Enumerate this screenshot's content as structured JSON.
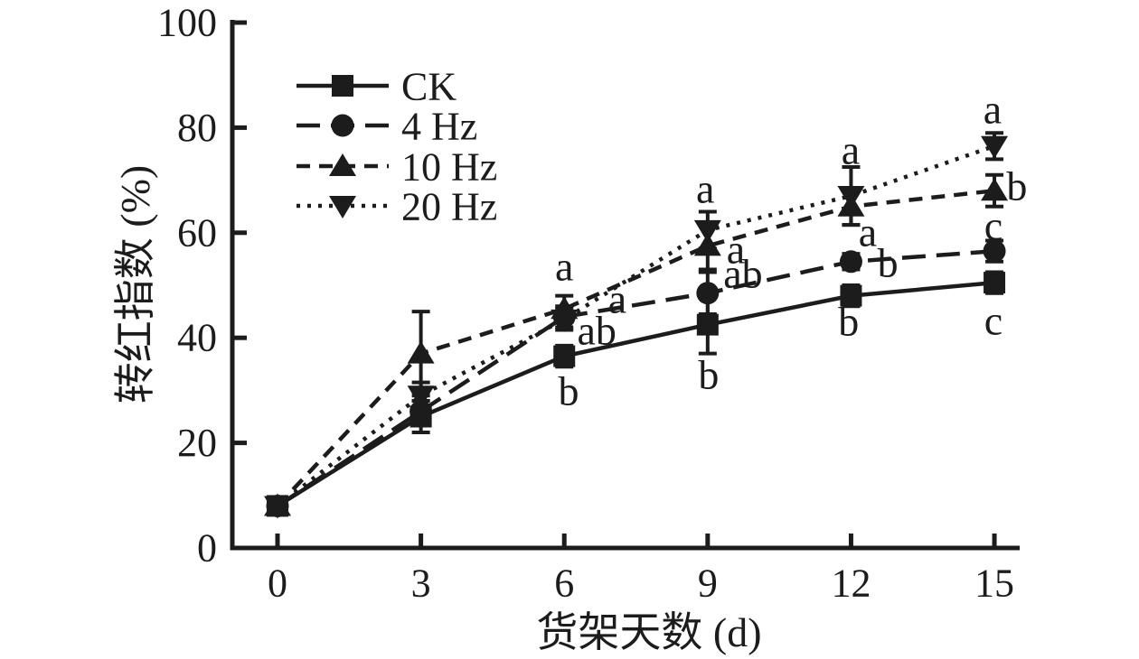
{
  "figure": {
    "background": "#ffffff",
    "ink_color": "#1c1c1c"
  },
  "chart_data": {
    "type": "line",
    "title": "",
    "xlabel": "货架天数 (d)",
    "ylabel": "转红指数 (%)",
    "x": [
      0,
      3,
      6,
      9,
      12,
      15
    ],
    "xtick_labels": [
      "0",
      "3",
      "6",
      "9",
      "12",
      "15"
    ],
    "ytick_values": [
      0,
      20,
      40,
      60,
      80,
      100
    ],
    "xlim": [
      -1,
      15.6
    ],
    "ylim": [
      0,
      100
    ],
    "grid": false,
    "error_bars": true,
    "legend_position": "top-left-inside",
    "series": [
      {
        "name": "CK",
        "marker": "square",
        "line_style": "solid",
        "values": [
          8,
          25,
          36.5,
          42.5,
          48,
          50.5
        ],
        "errors": [
          1.5,
          3,
          2,
          5.5,
          2,
          2
        ]
      },
      {
        "name": "4 Hz",
        "marker": "circle",
        "line_style": "long-dash",
        "values": [
          8,
          26,
          44,
          48.5,
          54.5,
          56.5
        ],
        "errors": [
          1.5,
          2,
          2,
          4,
          1.5,
          2
        ]
      },
      {
        "name": "10 Hz",
        "marker": "triangle-up",
        "line_style": "dash",
        "values": [
          8,
          37,
          45.5,
          57.5,
          65,
          68
        ],
        "errors": [
          1.5,
          8,
          2.5,
          4.5,
          3.5,
          3
        ]
      },
      {
        "name": "20 Hz",
        "marker": "triangle-down",
        "line_style": "dot",
        "values": [
          8,
          29,
          43.5,
          60.5,
          67,
          76.5
        ],
        "errors": [
          1.5,
          2.5,
          2,
          3.5,
          5.5,
          2.5
        ]
      }
    ],
    "annotations": [
      {
        "text": "a",
        "day": 6.0,
        "value": 53.6
      },
      {
        "text": "a",
        "day": 7.11,
        "value": 47.4
      },
      {
        "text": "ab",
        "day": 6.68,
        "value": 41.4
      },
      {
        "text": "b",
        "day": 6.09,
        "value": 29.9
      },
      {
        "text": "a",
        "day": 8.95,
        "value": 68.4
      },
      {
        "text": "a",
        "day": 9.59,
        "value": 56.9
      },
      {
        "text": "ab",
        "day": 9.74,
        "value": 52.2
      },
      {
        "text": "b",
        "day": 9.02,
        "value": 33.0
      },
      {
        "text": "a",
        "day": 11.99,
        "value": 75.8
      },
      {
        "text": "a",
        "day": 12.35,
        "value": 60.1
      },
      {
        "text": "b",
        "day": 12.77,
        "value": 54.3
      },
      {
        "text": "b",
        "day": 11.95,
        "value": 43.1
      },
      {
        "text": "a",
        "day": 14.96,
        "value": 83.5
      },
      {
        "text": "b",
        "day": 15.47,
        "value": 68.9
      },
      {
        "text": "c",
        "day": 14.98,
        "value": 61.3
      },
      {
        "text": "c",
        "day": 14.98,
        "value": 43.3
      }
    ]
  }
}
